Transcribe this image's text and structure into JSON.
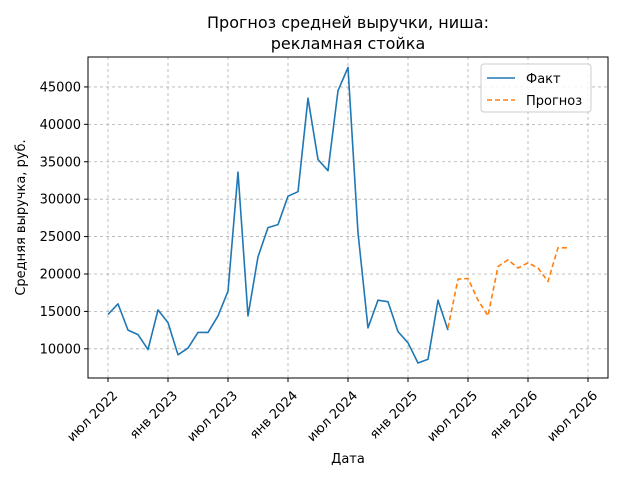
{
  "chart_data": {
    "type": "line",
    "title": [
      "Прогноз средней выручки, ниша:",
      "рекламная стойка"
    ],
    "xlabel": "Дата",
    "ylabel": "Средняя выручка, руб.",
    "x_unit": "month",
    "xlim": [
      "2022-05",
      "2026-09"
    ],
    "ylim": [
      6100,
      49000
    ],
    "grid": true,
    "legend_position": "top-right",
    "x_ticks": [
      {
        "date": "2022-07",
        "label": "июл 2022"
      },
      {
        "date": "2023-01",
        "label": "янв 2023"
      },
      {
        "date": "2023-07",
        "label": "июл 2023"
      },
      {
        "date": "2024-01",
        "label": "янв 2024"
      },
      {
        "date": "2024-07",
        "label": "июл 2024"
      },
      {
        "date": "2025-01",
        "label": "янв 2025"
      },
      {
        "date": "2025-07",
        "label": "июл 2025"
      },
      {
        "date": "2026-01",
        "label": "янв 2026"
      },
      {
        "date": "2026-07",
        "label": "июл 2026"
      }
    ],
    "y_ticks": [
      10000,
      15000,
      20000,
      25000,
      30000,
      35000,
      40000,
      45000
    ],
    "series": [
      {
        "name": "Факт",
        "color": "#1f77b4",
        "style": "solid",
        "x": [
          "2022-07",
          "2022-08",
          "2022-09",
          "2022-10",
          "2022-11",
          "2022-12",
          "2023-01",
          "2023-02",
          "2023-03",
          "2023-04",
          "2023-05",
          "2023-06",
          "2023-07",
          "2023-08",
          "2023-09",
          "2023-10",
          "2023-11",
          "2023-12",
          "2024-01",
          "2024-02",
          "2024-03",
          "2024-04",
          "2024-05",
          "2024-06",
          "2024-07",
          "2024-08",
          "2024-09",
          "2024-10",
          "2024-11",
          "2024-12",
          "2025-01",
          "2025-02",
          "2025-03",
          "2025-04",
          "2025-05"
        ],
        "y": [
          14600,
          16000,
          12500,
          11900,
          9900,
          15200,
          13500,
          9200,
          10100,
          12200,
          12200,
          14400,
          17700,
          33600,
          14400,
          22300,
          26200,
          26600,
          30400,
          31000,
          43500,
          35300,
          33800,
          44500,
          47600,
          25500,
          12800,
          16500,
          16300,
          12300,
          10800,
          8100,
          8600,
          16500,
          12500
        ]
      },
      {
        "name": "Прогноз",
        "color": "#ff7f0e",
        "style": "dashed",
        "x": [
          "2025-05",
          "2025-06",
          "2025-07",
          "2025-08",
          "2025-09",
          "2025-10",
          "2025-11",
          "2025-12",
          "2026-01",
          "2026-02",
          "2026-03",
          "2026-04",
          "2026-05"
        ],
        "y": [
          12800,
          19300,
          19400,
          16500,
          14400,
          21000,
          21900,
          20800,
          21500,
          20800,
          19000,
          23500,
          23500
        ]
      }
    ]
  }
}
